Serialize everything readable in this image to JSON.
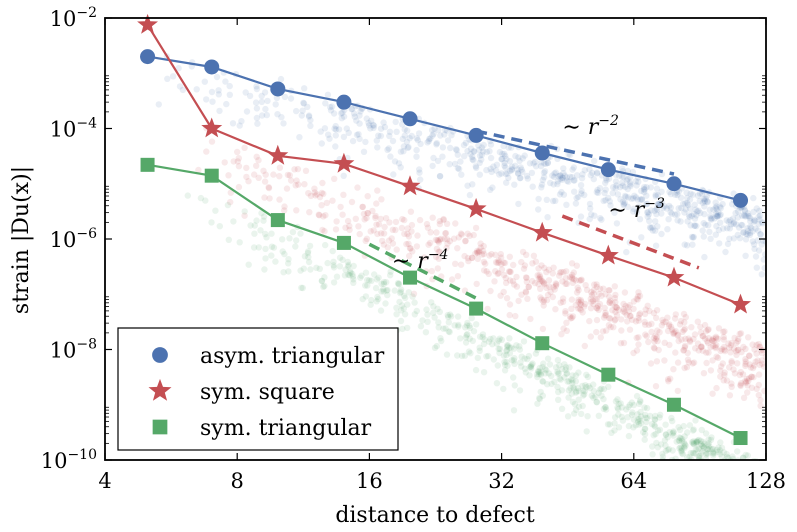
{
  "chart_data": {
    "type": "scatter",
    "title": "",
    "xlabel": "distance to defect",
    "ylabel": "strain |Du(x)|",
    "xscale": "log2",
    "yscale": "log10",
    "xlim": [
      4,
      128
    ],
    "ylim": [
      1e-10,
      0.01
    ],
    "xticks": [
      4,
      8,
      16,
      32,
      64,
      128
    ],
    "xtick_labels": [
      "4",
      "8",
      "16",
      "32",
      "64",
      "128"
    ],
    "yticks": [
      1e-10,
      1e-08,
      1e-06,
      0.0001,
      0.01
    ],
    "ytick_labels": [
      {
        "base": "10",
        "exp": "−10"
      },
      {
        "base": "10",
        "exp": "−8"
      },
      {
        "base": "10",
        "exp": "−6"
      },
      {
        "base": "10",
        "exp": "−4"
      },
      {
        "base": "10",
        "exp": "−2"
      }
    ],
    "legend_position": "bottom-left",
    "series": [
      {
        "name": "asym. triangular",
        "marker": "circle",
        "color": "#4c72b0",
        "x": [
          5,
          7,
          9.9,
          14,
          19.8,
          28,
          39.6,
          56,
          79,
          112
        ],
        "y": [
          0.002,
          0.0013,
          0.00052,
          0.0003,
          0.00015,
          7.5e-05,
          3.6e-05,
          1.8e-05,
          1e-05,
          5e-06
        ],
        "cloud": {
          "x_start": 5,
          "x_end": 128,
          "y_center_at_start": 0.002,
          "slope": -2,
          "spread_decades": 0.7
        }
      },
      {
        "name": "sym. square",
        "marker": "star",
        "color": "#c44e52",
        "x": [
          5,
          7,
          9.9,
          14,
          19.8,
          28,
          39.6,
          56,
          79,
          112
        ],
        "y": [
          0.0075,
          0.0001,
          3.2e-05,
          2.3e-05,
          9e-06,
          3.5e-06,
          1.3e-06,
          5e-07,
          2e-07,
          6.5e-08
        ],
        "cloud": {
          "x_start": 6,
          "x_end": 128,
          "y_center_at_start": 0.0001,
          "slope": -3,
          "spread_decades": 0.8
        }
      },
      {
        "name": "sym. triangular",
        "marker": "square",
        "color": "#55a868",
        "x": [
          5,
          7,
          9.9,
          14,
          19.8,
          28,
          39.6,
          56,
          79,
          112
        ],
        "y": [
          2.2e-05,
          1.4e-05,
          2.2e-06,
          8.5e-07,
          2e-07,
          5.5e-08,
          1.3e-08,
          3.5e-09,
          1e-09,
          2.5e-10
        ],
        "cloud": {
          "x_start": 6,
          "x_end": 128,
          "y_center_at_start": 1.4e-05,
          "slope": -4,
          "spread_decades": 0.6
        }
      }
    ],
    "reference_lines": [
      {
        "label_base": "∼ r",
        "label_exp": "−2",
        "color": "#4c72b0",
        "x": [
          28,
          79
        ],
        "y": [
          9e-05,
          1.5e-05
        ],
        "label_x": 44,
        "label_y": 8e-05
      },
      {
        "label_base": "∼ r",
        "label_exp": "−3",
        "color": "#c44e52",
        "x": [
          44,
          90
        ],
        "y": [
          2.6e-06,
          3e-07
        ],
        "label_x": 56,
        "label_y": 2.5e-06
      },
      {
        "label_base": "∼ r",
        "label_exp": "−4",
        "color": "#55a868",
        "x": [
          16,
          28
        ],
        "y": [
          8e-07,
          8.5e-08
        ],
        "label_x": 18,
        "label_y": 3e-07
      }
    ]
  }
}
